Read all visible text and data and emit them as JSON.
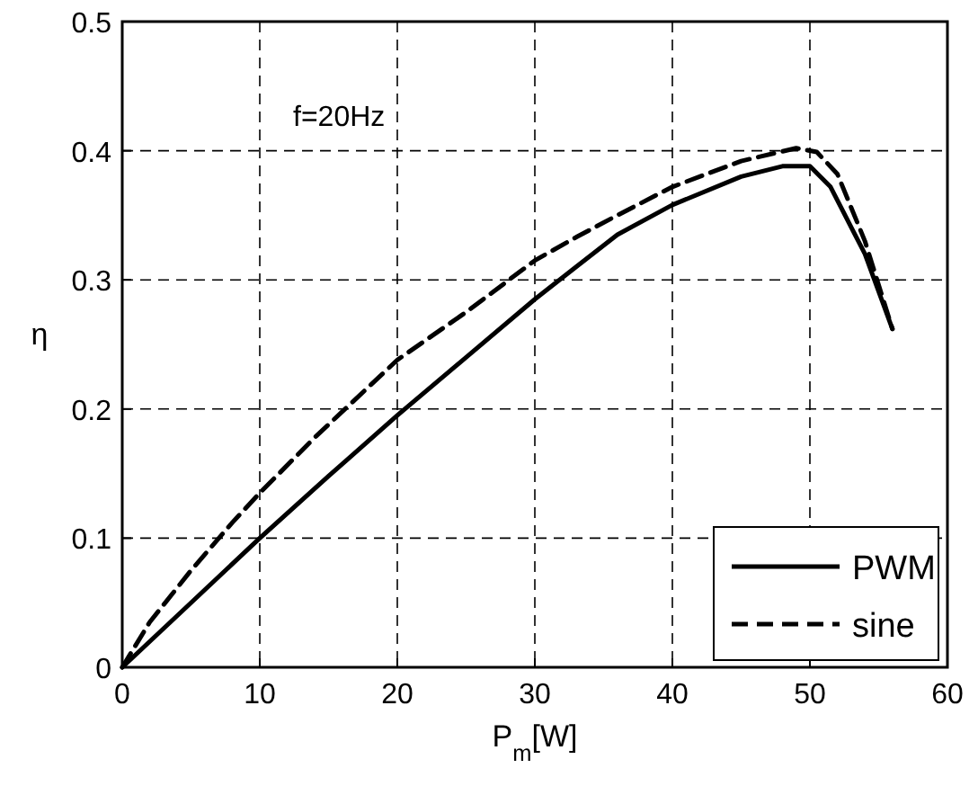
{
  "chart_data": {
    "type": "line",
    "xlabel": "P$_{m}$[W]",
    "ylabel": "η",
    "xlim": [
      0,
      60
    ],
    "ylim": [
      0,
      0.5
    ],
    "xticks": [
      0,
      10,
      20,
      30,
      40,
      50,
      60
    ],
    "yticks": [
      0,
      0.1,
      0.2,
      0.3,
      0.4,
      0.5
    ],
    "grid": true,
    "legend": "bottom right",
    "annotations": [
      "f=20Hz"
    ],
    "series": [
      {
        "name": "PWM",
        "color": "#000000",
        "line_style": "solid",
        "marker": "none",
        "x": [
          0,
          5,
          10,
          15,
          20,
          25,
          30,
          33,
          36,
          40,
          45,
          48,
          50,
          51.5,
          54,
          56
        ],
        "values": [
          0,
          0.05,
          0.1,
          0.148,
          0.195,
          0.24,
          0.285,
          0.31,
          0.335,
          0.358,
          0.38,
          0.388,
          0.388,
          0.372,
          0.32,
          0.262
        ]
      },
      {
        "name": "sine",
        "color": "#000000",
        "line_style": "dashed",
        "marker": "none",
        "x": [
          0,
          2,
          5,
          8,
          10,
          14,
          20,
          25,
          30,
          33,
          36,
          40,
          45,
          49,
          50.5,
          52,
          54,
          56
        ],
        "values": [
          0,
          0.035,
          0.075,
          0.112,
          0.135,
          0.178,
          0.238,
          0.275,
          0.315,
          0.333,
          0.35,
          0.372,
          0.392,
          0.402,
          0.399,
          0.382,
          0.33,
          0.262
        ]
      }
    ]
  }
}
